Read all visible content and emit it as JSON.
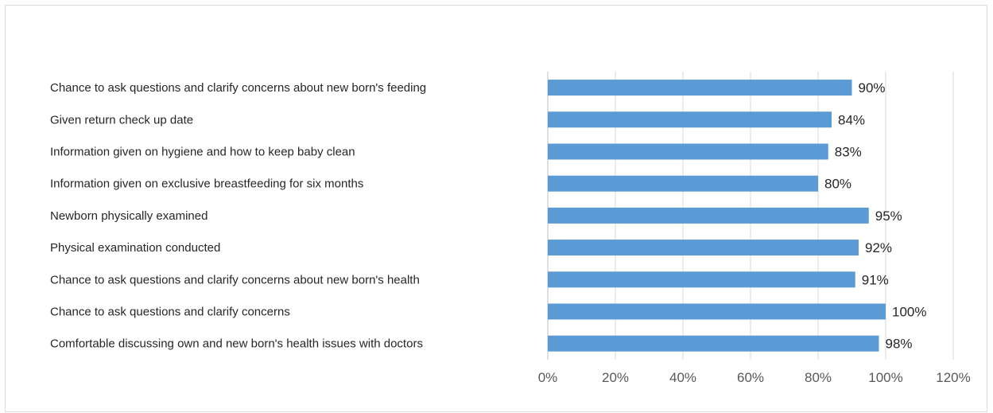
{
  "chart_data": {
    "type": "bar",
    "orientation": "horizontal",
    "categories": [
      "Chance to ask questions and clarify concerns about new born's feeding",
      "Given return check up date",
      "Information given on hygiene and how to keep baby clean",
      "Information given on exclusive breastfeeding for six months",
      "Newborn physically examined",
      "Physical examination conducted",
      "Chance to ask questions and clarify concerns about new born's health",
      "Chance to ask questions and clarify concerns",
      "Comfortable discussing own and new born's health issues with doctors"
    ],
    "values": [
      90,
      84,
      83,
      80,
      95,
      92,
      91,
      100,
      98
    ],
    "value_labels": [
      "90%",
      "84%",
      "83%",
      "80%",
      "95%",
      "92%",
      "91%",
      "100%",
      "98%"
    ],
    "xlim": [
      0,
      120
    ],
    "x_ticks": [
      0,
      20,
      40,
      60,
      80,
      100,
      120
    ],
    "x_tick_labels": [
      "0%",
      "20%",
      "40%",
      "60%",
      "80%",
      "100%",
      "120%"
    ],
    "title": "",
    "xlabel": "",
    "ylabel": "",
    "grid": "vertical",
    "legend": "none",
    "colors": {
      "bar": "#5b9bd5",
      "grid": "#d9d9d9",
      "text": "#262626",
      "tick_text": "#595959"
    }
  }
}
